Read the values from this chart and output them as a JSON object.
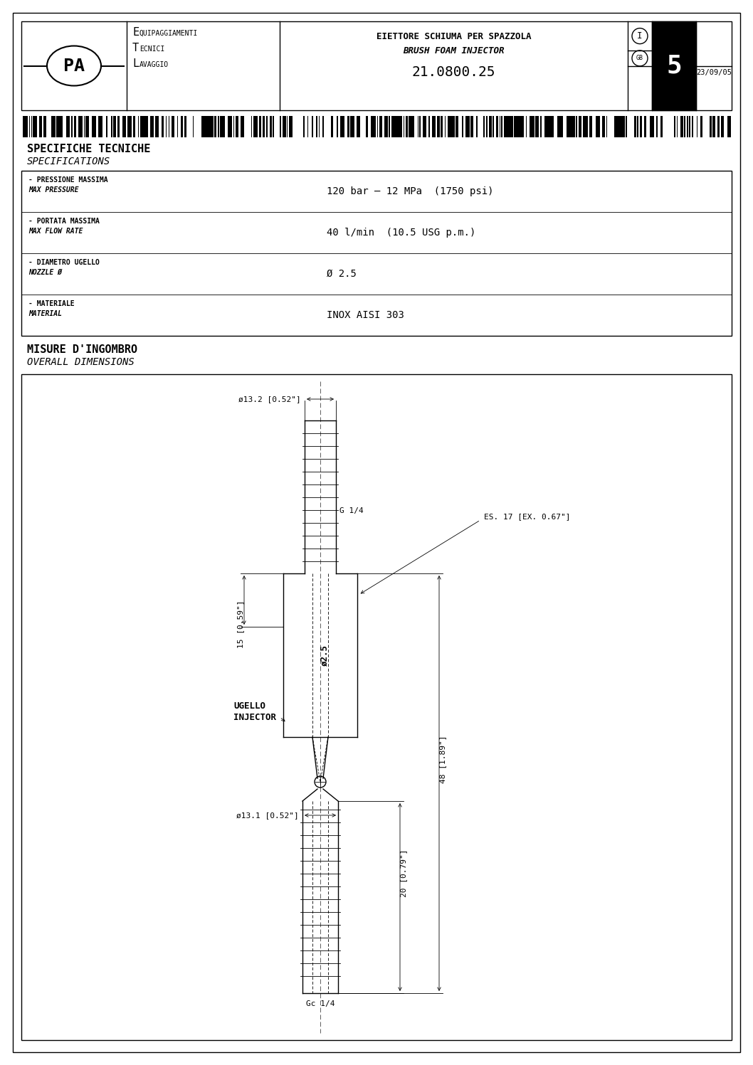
{
  "page_bg": "#ffffff",
  "border_color": "#000000",
  "lw": 1.0,
  "tlw": 0.6,
  "header": {
    "company_line1": "EQUIPAGGIAMENTI",
    "company_line2": "TECNICI",
    "company_line3": "LAVAGGIO",
    "title_line1": "EIETTORE SCHIUMA PER SPAZZOLA",
    "title_line2": "BRUSH FOAM INJECTOR",
    "part_number": "21.0800.25",
    "page_num": "5",
    "date": "23/09/05"
  },
  "specs": {
    "section_title_it": "SPECIFICHE TECNICHE",
    "section_title_en": "SPECIFICATIONS",
    "rows": [
      {
        "label_it": "- PRESSIONE MASSIMA",
        "label_en": "MAX PRESSURE",
        "value": "120 bar – 12 MPa  (1750 psi)"
      },
      {
        "label_it": "- PORTATA MASSIMA",
        "label_en": "MAX FLOW RATE",
        "value": "40 l/min  (10.5 USG p.m.)"
      },
      {
        "label_it": "- DIAMETRO UGELLO",
        "label_en": "NOZZLE Ø",
        "value": "Ø 2.5"
      },
      {
        "label_it": "- MATERIALE",
        "label_en": "MATERIAL",
        "value": "INOX AISI 303"
      }
    ]
  },
  "drawing": {
    "section_title_it": "MISURE D'INGOMBRO",
    "section_title_en": "OVERALL DIMENSIONS"
  }
}
